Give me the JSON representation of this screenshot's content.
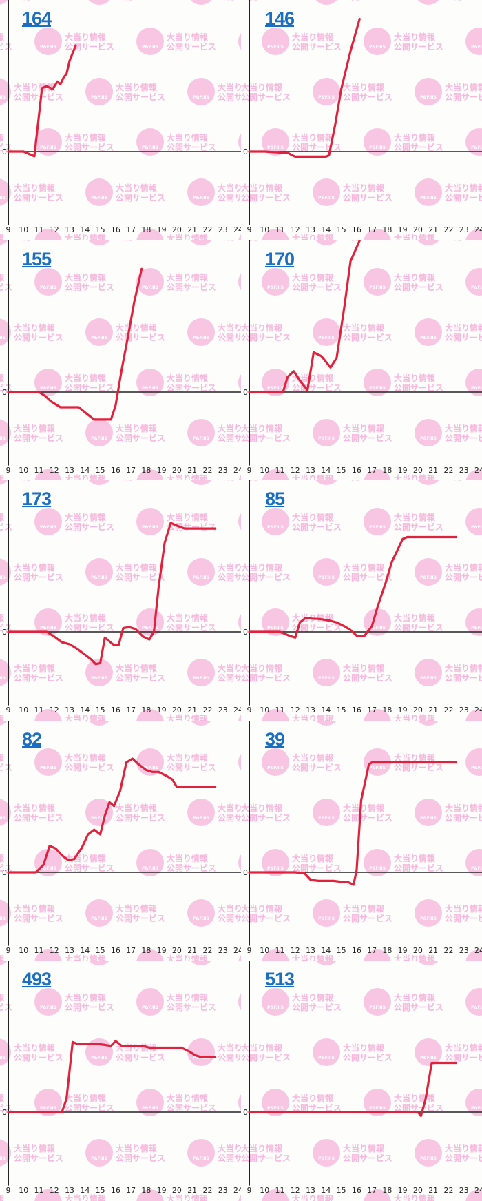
{
  "watermark": {
    "line1": "大当り情報",
    "line2": "公開サービス",
    "badge": "P&F.IIS"
  },
  "colors": {
    "line": "#e2223c",
    "axis": "#222222",
    "title": "#1a6fc4",
    "watermark": "#f8c6e3"
  },
  "chart_data": [
    {
      "type": "line",
      "title": "164",
      "zero_label": "0",
      "x_ticks": [
        "9",
        "10",
        "11",
        "12",
        "13",
        "14",
        "15",
        "16",
        "17",
        "18",
        "19",
        "20",
        "21",
        "22",
        "23",
        "24"
      ],
      "x": [
        9,
        10,
        10.7,
        11.2,
        11.5,
        11.9,
        12.2,
        12.4,
        12.6,
        12.8,
        13,
        13.4
      ],
      "y": [
        0,
        0,
        -250,
        3350,
        3450,
        3300,
        3700,
        3550,
        3900,
        4100,
        4800,
        5600
      ]
    },
    {
      "type": "line",
      "title": "146",
      "zero_label": "0",
      "x_ticks": [
        "9",
        "10",
        "11",
        "12",
        "13",
        "14",
        "15",
        "16",
        "17",
        "18",
        "19",
        "20",
        "21",
        "22",
        "23",
        "24"
      ],
      "x": [
        9,
        10,
        11,
        11.5,
        11.8,
        12,
        13,
        14,
        14.2,
        14.6,
        15,
        15.3,
        15.6,
        16.2
      ],
      "y": [
        0,
        0,
        -50,
        -60,
        -200,
        -270,
        -270,
        -270,
        -200,
        1400,
        3300,
        4300,
        5300,
        7000
      ]
    },
    {
      "type": "line",
      "title": "155",
      "zero_label": "0",
      "x_ticks": [
        "9",
        "10",
        "11",
        "12",
        "13",
        "14",
        "15",
        "16",
        "17",
        "18",
        "19",
        "20",
        "21",
        "22",
        "23",
        "24"
      ],
      "x": [
        9,
        10,
        11,
        11.4,
        11.8,
        12.4,
        12.8,
        13.6,
        14.2,
        14.6,
        15.1,
        15.7,
        16,
        16.4,
        16.8,
        17.2,
        17.7
      ],
      "y": [
        0,
        0,
        0,
        -200,
        -500,
        -800,
        -800,
        -800,
        -1200,
        -1450,
        -1450,
        -1450,
        -700,
        1200,
        2900,
        4700,
        6500
      ]
    },
    {
      "type": "line",
      "title": "170",
      "zero_label": "0",
      "x_ticks": [
        "9",
        "10",
        "11",
        "12",
        "13",
        "14",
        "15",
        "16",
        "17",
        "18",
        "19",
        "20",
        "21",
        "22",
        "23",
        "24"
      ],
      "x": [
        9,
        10,
        11.2,
        11.5,
        11.9,
        12.4,
        12.8,
        13.2,
        13.7,
        14.3,
        14.7,
        15.2,
        15.6,
        16.2
      ],
      "y": [
        0,
        0,
        0,
        800,
        1100,
        500,
        100,
        2100,
        1900,
        1300,
        1800,
        4500,
        6900,
        8000
      ]
    },
    {
      "type": "line",
      "title": "173",
      "zero_label": "0",
      "x_ticks": [
        "9",
        "10",
        "11",
        "12",
        "13",
        "14",
        "15",
        "16",
        "17",
        "18",
        "19",
        "20",
        "21",
        "22",
        "23",
        "24"
      ],
      "x": [
        9,
        10,
        11,
        11.5,
        12,
        12.5,
        13,
        13.5,
        14,
        14.4,
        14.7,
        15,
        15.3,
        15.9,
        16.2,
        16.5,
        16.9,
        17.3,
        17.8,
        18.2,
        18.5,
        18.8,
        19.2,
        19.6,
        20,
        20.5,
        21,
        22,
        22.5
      ],
      "y": [
        0,
        0,
        0,
        0,
        -250,
        -550,
        -650,
        -900,
        -1200,
        -1450,
        -1700,
        -1650,
        -300,
        -700,
        -700,
        200,
        250,
        150,
        -250,
        -400,
        0,
        2300,
        4700,
        5750,
        5600,
        5450,
        5450,
        5450,
        5450
      ]
    },
    {
      "type": "line",
      "title": "85",
      "zero_label": "0",
      "x_ticks": [
        "9",
        "10",
        "11",
        "12",
        "13",
        "14",
        "15",
        "16",
        "17",
        "18",
        "19",
        "20",
        "21",
        "22",
        "23",
        "24"
      ],
      "x": [
        9,
        10,
        11,
        11.6,
        12,
        12.3,
        12.7,
        13.1,
        13.6,
        14.2,
        14.7,
        15.2,
        15.6,
        16,
        16.5,
        17,
        17.4,
        17.9,
        18.3,
        18.6,
        19,
        19.3,
        19.6,
        20,
        20.5,
        21,
        22,
        22.5
      ],
      "y": [
        0,
        0,
        0,
        -200,
        -300,
        500,
        750,
        700,
        680,
        600,
        500,
        300,
        100,
        -200,
        -220,
        300,
        1400,
        2600,
        3700,
        4200,
        4900,
        5000,
        5000,
        5000,
        5000,
        5000,
        5000,
        5000
      ]
    },
    {
      "type": "line",
      "title": "82",
      "zero_label": "0",
      "x_ticks": [
        "9",
        "10",
        "11",
        "12",
        "13",
        "14",
        "15",
        "16",
        "17",
        "18",
        "19",
        "20",
        "21",
        "22",
        "23",
        "24"
      ],
      "x": [
        9,
        10,
        10.8,
        11.3,
        11.7,
        12.1,
        12.5,
        12.9,
        13.3,
        13.8,
        14.2,
        14.6,
        15,
        15.3,
        15.6,
        15.9,
        16.3,
        16.7,
        17.1,
        17.5,
        18,
        18.4,
        18.8,
        19.3,
        19.7,
        20,
        20.6,
        21.5,
        22,
        22.5
      ],
      "y": [
        0,
        0,
        0,
        400,
        1400,
        1250,
        900,
        650,
        700,
        1300,
        2000,
        2250,
        2000,
        3000,
        3700,
        3500,
        4300,
        5800,
        6000,
        5700,
        5400,
        5300,
        5300,
        5100,
        4900,
        4500,
        4500,
        4500,
        4500,
        4500
      ]
    },
    {
      "type": "line",
      "title": "39",
      "zero_label": "0",
      "x_ticks": [
        "9",
        "10",
        "11",
        "12",
        "13",
        "14",
        "15",
        "16",
        "17",
        "18",
        "19",
        "20",
        "21",
        "22",
        "23",
        "24"
      ],
      "x": [
        9,
        10,
        11,
        12,
        12.6,
        13,
        13.5,
        14,
        14.5,
        15,
        15.4,
        15.8,
        16,
        16.3,
        16.8,
        17,
        17.4,
        18,
        19,
        20,
        21,
        22,
        22.5
      ],
      "y": [
        0,
        0,
        0,
        0,
        -50,
        -400,
        -450,
        -450,
        -450,
        -500,
        -500,
        -650,
        100,
        3800,
        5700,
        5800,
        5800,
        5800,
        5800,
        5800,
        5800,
        5800,
        5800
      ]
    },
    {
      "type": "line",
      "title": "493",
      "zero_label": "0",
      "x_ticks": [
        "9",
        "10",
        "11",
        "12",
        "13",
        "14",
        "15",
        "16",
        "17",
        "18",
        "19",
        "20",
        "21",
        "22",
        "23",
        "24"
      ],
      "x": [
        9,
        10,
        11,
        12,
        12.5,
        12.8,
        13.2,
        13.5,
        13.8,
        14.3,
        14.8,
        15.3,
        15.7,
        16,
        16.4,
        16.8,
        17.3,
        17.8,
        18.2,
        18.8,
        19.3,
        19.8,
        20.3,
        20.8,
        21.2,
        21.6,
        22,
        22.5
      ],
      "y": [
        0,
        0,
        0,
        0,
        0,
        700,
        3700,
        3600,
        3600,
        3600,
        3600,
        3550,
        3500,
        3750,
        3500,
        3500,
        3500,
        3500,
        3400,
        3400,
        3400,
        3400,
        3400,
        3200,
        3000,
        2900,
        2900,
        2900
      ]
    },
    {
      "type": "line",
      "title": "513",
      "zero_label": "0",
      "x_ticks": [
        "9",
        "10",
        "11",
        "12",
        "13",
        "14",
        "15",
        "16",
        "17",
        "18",
        "19",
        "20",
        "21",
        "22",
        "23",
        "24"
      ],
      "x": [
        9,
        10,
        11,
        12,
        13,
        14,
        15,
        16,
        17,
        18,
        19,
        20,
        20.2,
        20.5,
        20.9,
        21.3,
        21.8,
        22.5
      ],
      "y": [
        0,
        0,
        0,
        0,
        0,
        0,
        0,
        0,
        0,
        0,
        0,
        0,
        -200,
        700,
        2600,
        2600,
        2600,
        2600
      ]
    }
  ]
}
